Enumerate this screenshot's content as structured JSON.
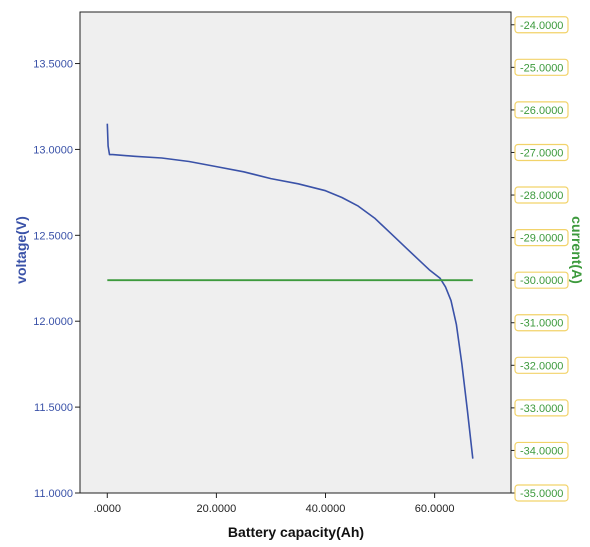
{
  "chart_data": {
    "type": "line",
    "xlabel": "Battery capacity(Ah)",
    "ylabel_left": "voltage(V)",
    "ylabel_right": "current(A)",
    "xlim": [
      -5,
      74
    ],
    "ylim_left": [
      11.0,
      13.8
    ],
    "ylim_right": [
      -35.0,
      -23.7
    ],
    "x_ticks": [
      0,
      20,
      40,
      60
    ],
    "x_tick_labels": [
      ".0000",
      "20.0000",
      "40.0000",
      "60.0000"
    ],
    "y_left_ticks": [
      11.0,
      11.5,
      12.0,
      12.5,
      13.0,
      13.5
    ],
    "y_left_tick_labels": [
      "11.0000",
      "11.5000",
      "12.0000",
      "12.5000",
      "13.0000",
      "13.5000"
    ],
    "y_right_ticks": [
      -35,
      -34,
      -33,
      -32,
      -31,
      -30,
      -29,
      -28,
      -27,
      -26,
      -25,
      -24
    ],
    "y_right_tick_labels": [
      "-35.0000",
      "-34.0000",
      "-33.0000",
      "-32.0000",
      "-31.0000",
      "-30.0000",
      "-29.0000",
      "-28.0000",
      "-27.0000",
      "-26.0000",
      "-25.0000",
      "-24.0000"
    ],
    "grid": false,
    "colors": {
      "voltage": "#3a52a8",
      "current": "#3d9a3d",
      "plot_bg": "#efefef",
      "right_tick_box": "#f2d36a"
    },
    "series": [
      {
        "axis": "left",
        "x": [
          0,
          0.15,
          0.4,
          1,
          5,
          10,
          15,
          20,
          25,
          30,
          35,
          40,
          43,
          46,
          49,
          52,
          55,
          57,
          59,
          61,
          62,
          63,
          64,
          65,
          66,
          67
        ],
        "values": [
          13.15,
          13.02,
          12.97,
          12.97,
          12.96,
          12.95,
          12.93,
          12.9,
          12.87,
          12.83,
          12.8,
          12.76,
          12.72,
          12.67,
          12.6,
          12.51,
          12.42,
          12.36,
          12.3,
          12.25,
          12.2,
          12.12,
          11.98,
          11.75,
          11.48,
          11.2
        ]
      },
      {
        "axis": "right",
        "x": [
          0,
          67
        ],
        "values": [
          -30.0,
          -30.0
        ]
      }
    ]
  }
}
